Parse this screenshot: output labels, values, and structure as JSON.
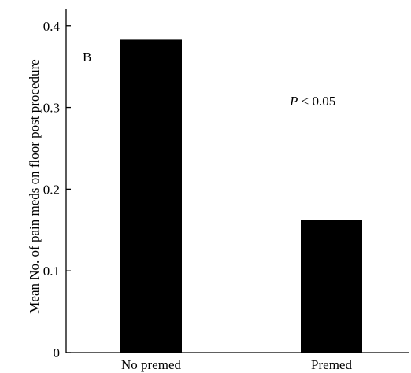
{
  "chart_data": {
    "type": "bar",
    "panel_label": "B",
    "annotation": {
      "italic": "P",
      "rest": " < 0.05"
    },
    "ylabel": "Mean No. of pain meds on floor post procedure",
    "xlabel": "",
    "categories": [
      "No premed",
      "Premed"
    ],
    "values": [
      0.383,
      0.162
    ],
    "ylim": [
      0,
      0.42
    ],
    "yticks": [
      "0",
      "0.1",
      "0.2",
      "0.3",
      "0.4"
    ],
    "bar_color": "#000000",
    "grid": false,
    "legend": "none"
  }
}
